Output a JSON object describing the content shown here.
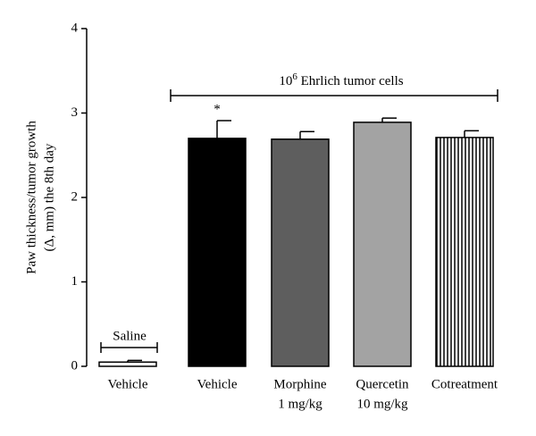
{
  "chart_data": {
    "type": "bar",
    "y_label": [
      "Paw thickness/tumor growth",
      "(Δ, mm) the 8th day"
    ],
    "categories": [
      "Vehicle",
      "Vehicle",
      [
        "Morphine",
        "1 mg/kg"
      ],
      [
        "Quercetin",
        "10 mg/kg"
      ],
      "Cotreatment"
    ],
    "values": [
      0.05,
      2.7,
      2.69,
      2.89,
      2.71
    ],
    "errors": [
      0.02,
      0.21,
      0.09,
      0.05,
      0.08
    ],
    "colors": [
      "#ffffff",
      "#000000",
      "#5e5e5e",
      "#a3a3a3",
      "#ffffff"
    ],
    "hatches": [
      null,
      null,
      null,
      null,
      "vertical"
    ],
    "ylim": [
      0,
      4
    ],
    "yticks": [
      0,
      1,
      2,
      3,
      4
    ],
    "annotations": {
      "saline": "Saline",
      "tumor": {
        "base": "10",
        "superscript": "6",
        "text": " Ehrlich tumor cells"
      },
      "significance": "*"
    }
  }
}
